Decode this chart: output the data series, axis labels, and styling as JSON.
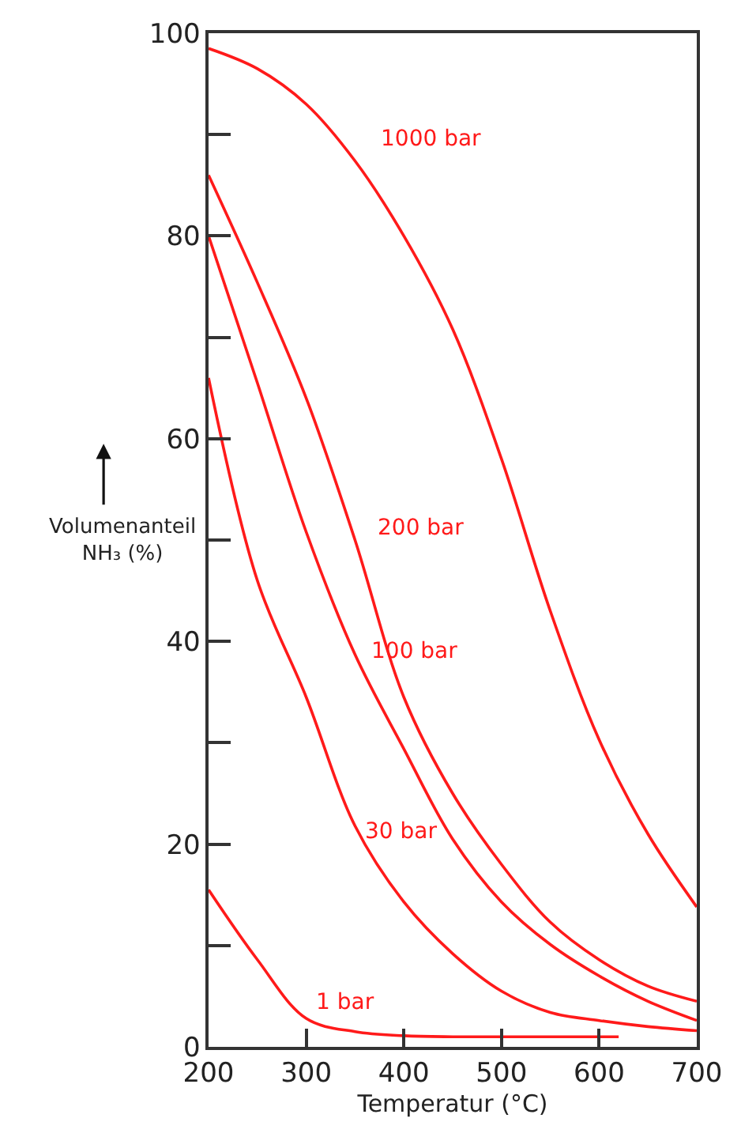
{
  "chart_data": {
    "type": "line",
    "xlabel": "Temperatur (°C)",
    "ylabel": "Volumenanteil\nNH₃ (%)",
    "xlim": [
      200,
      700
    ],
    "ylim": [
      0,
      100
    ],
    "xticks": [
      200,
      300,
      400,
      500,
      600,
      700
    ],
    "yticks": [
      0,
      {
        "value": 10,
        "label": null
      },
      20,
      {
        "value": 30,
        "label": null
      },
      40,
      {
        "value": 50,
        "label": null
      },
      60,
      {
        "value": 70,
        "label": null
      },
      80,
      {
        "value": 90,
        "label": null
      },
      100
    ],
    "grid": false,
    "legend": false,
    "marker": "none",
    "line_style": "solid",
    "series": [
      {
        "name": "1000 bar",
        "color": "#ff1a1a",
        "x": [
          200,
          250,
          300,
          350,
          400,
          450,
          500,
          550,
          600,
          650,
          700
        ],
        "values": [
          98.5,
          96.5,
          93,
          87.4,
          80,
          70.8,
          58,
          43,
          30.3,
          21,
          13.8
        ]
      },
      {
        "name": "200 bar",
        "color": "#ff1a1a",
        "x": [
          200,
          250,
          300,
          350,
          400,
          450,
          500,
          550,
          600,
          650,
          700
        ],
        "values": [
          86,
          75.4,
          64,
          50,
          34.5,
          25,
          18,
          12.3,
          8.6,
          6,
          4.5
        ]
      },
      {
        "name": "100 bar",
        "color": "#ff1a1a",
        "x": [
          200,
          250,
          300,
          350,
          400,
          450,
          500,
          550,
          600,
          650,
          700
        ],
        "values": [
          80,
          65.5,
          50.8,
          38.7,
          29.4,
          20.5,
          14.3,
          10.1,
          7,
          4.5,
          2.6
        ]
      },
      {
        "name": "30 bar",
        "color": "#ff1a1a",
        "x": [
          200,
          250,
          300,
          350,
          400,
          450,
          500,
          550,
          600,
          650,
          700
        ],
        "values": [
          66,
          46,
          34.5,
          21.8,
          14.3,
          9.2,
          5.5,
          3.4,
          2.6,
          2,
          1.6
        ]
      },
      {
        "name": "1 bar",
        "color": "#ff1a1a",
        "x": [
          200,
          250,
          300,
          350,
          400,
          450,
          500,
          550,
          600,
          620
        ],
        "values": [
          15.5,
          8.6,
          2.8,
          1.5,
          1.1,
          1,
          1,
          1,
          1,
          1
        ]
      }
    ]
  }
}
